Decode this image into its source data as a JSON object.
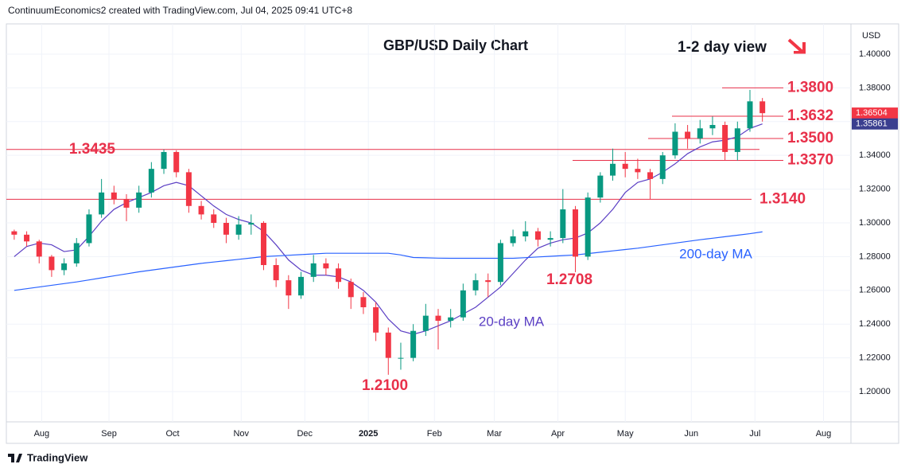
{
  "chart_data": {
    "type": "candlestick",
    "header": "ContinuumEconomics2 created with TradingView.com, Jul 04, 2025 09:41 UTC+8",
    "title": "GBP/USD Daily Chart",
    "subtitle": "1-2 day view",
    "y_axis_label": "USD",
    "footer": "TradingView",
    "up_color": "#089981",
    "down_color": "#f23645",
    "ylim": [
      1.1821,
      1.4179
    ],
    "yticks": [
      {
        "value": 1.2,
        "label": "1.20000"
      },
      {
        "value": 1.22,
        "label": "1.22000"
      },
      {
        "value": 1.24,
        "label": "1.24000"
      },
      {
        "value": 1.26,
        "label": "1.26000"
      },
      {
        "value": 1.28,
        "label": "1.28000"
      },
      {
        "value": 1.3,
        "label": "1.30000"
      },
      {
        "value": 1.32,
        "label": "1.32000"
      },
      {
        "value": 1.34,
        "label": "1.34000"
      },
      {
        "value": 1.36,
        "label": "1.36000"
      },
      {
        "value": 1.38,
        "label": "1.38000"
      },
      {
        "value": 1.4,
        "label": "1.40000"
      }
    ],
    "xlim": [
      -0.63,
      67.1
    ],
    "xticks": [
      {
        "value": 2.2,
        "label": "Aug"
      },
      {
        "value": 7.6,
        "label": "Sep"
      },
      {
        "value": 12.7,
        "label": "Oct"
      },
      {
        "value": 18.2,
        "label": "Nov"
      },
      {
        "value": 23.3,
        "label": "Dec"
      },
      {
        "value": 28.4,
        "label": "2025"
      },
      {
        "value": 33.7,
        "label": "Feb"
      },
      {
        "value": 38.5,
        "label": "Mar"
      },
      {
        "value": 43.6,
        "label": "Apr"
      },
      {
        "value": 49,
        "label": "May"
      },
      {
        "value": 54.3,
        "label": "Jun"
      },
      {
        "value": 59.4,
        "label": "Jul"
      },
      {
        "value": 64.9,
        "label": "Aug"
      }
    ],
    "ohlc": [
      [
        1.295,
        1.296,
        1.29,
        1.293
      ],
      [
        1.293,
        1.295,
        1.286,
        1.289
      ],
      [
        1.289,
        1.29,
        1.276,
        1.28
      ],
      [
        1.28,
        1.281,
        1.268,
        1.272
      ],
      [
        1.272,
        1.279,
        1.269,
        1.276
      ],
      [
        1.276,
        1.291,
        1.274,
        1.288
      ],
      [
        1.288,
        1.308,
        1.286,
        1.305
      ],
      [
        1.305,
        1.326,
        1.303,
        1.318
      ],
      [
        1.318,
        1.322,
        1.311,
        1.314
      ],
      [
        1.314,
        1.317,
        1.301,
        1.309
      ],
      [
        1.309,
        1.322,
        1.306,
        1.318
      ],
      [
        1.318,
        1.336,
        1.315,
        1.332
      ],
      [
        1.332,
        1.3435,
        1.329,
        1.342
      ],
      [
        1.342,
        1.343,
        1.327,
        1.33
      ],
      [
        1.33,
        1.332,
        1.306,
        1.31
      ],
      [
        1.31,
        1.313,
        1.302,
        1.305
      ],
      [
        1.305,
        1.308,
        1.297,
        1.3
      ],
      [
        1.3,
        1.303,
        1.288,
        1.293
      ],
      [
        1.293,
        1.304,
        1.29,
        1.299
      ],
      [
        1.299,
        1.305,
        1.293,
        1.3
      ],
      [
        1.3,
        1.301,
        1.272,
        1.275
      ],
      [
        1.275,
        1.279,
        1.262,
        1.266
      ],
      [
        1.266,
        1.269,
        1.249,
        1.257
      ],
      [
        1.257,
        1.271,
        1.255,
        1.268
      ],
      [
        1.268,
        1.281,
        1.265,
        1.276
      ],
      [
        1.276,
        1.279,
        1.269,
        1.273
      ],
      [
        1.273,
        1.276,
        1.261,
        1.265
      ],
      [
        1.265,
        1.267,
        1.249,
        1.256
      ],
      [
        1.256,
        1.259,
        1.246,
        1.25
      ],
      [
        1.25,
        1.253,
        1.23,
        1.235
      ],
      [
        1.235,
        1.238,
        1.21,
        1.22
      ],
      [
        1.22,
        1.229,
        1.213,
        1.22
      ],
      [
        1.22,
        1.24,
        1.218,
        1.236
      ],
      [
        1.236,
        1.252,
        1.233,
        1.245
      ],
      [
        1.245,
        1.249,
        1.225,
        1.242
      ],
      [
        1.242,
        1.249,
        1.238,
        1.244
      ],
      [
        1.244,
        1.264,
        1.242,
        1.26
      ],
      [
        1.26,
        1.27,
        1.257,
        1.266
      ],
      [
        1.266,
        1.27,
        1.256,
        1.265
      ],
      [
        1.265,
        1.29,
        1.263,
        1.288
      ],
      [
        1.288,
        1.296,
        1.286,
        1.292
      ],
      [
        1.292,
        1.301,
        1.289,
        1.295
      ],
      [
        1.295,
        1.297,
        1.286,
        1.29
      ],
      [
        1.29,
        1.295,
        1.286,
        1.291
      ],
      [
        1.291,
        1.32,
        1.288,
        1.308
      ],
      [
        1.308,
        1.31,
        1.2708,
        1.28
      ],
      [
        1.28,
        1.318,
        1.278,
        1.315
      ],
      [
        1.315,
        1.33,
        1.312,
        1.328
      ],
      [
        1.328,
        1.344,
        1.325,
        1.335
      ],
      [
        1.335,
        1.342,
        1.327,
        1.332
      ],
      [
        1.332,
        1.338,
        1.326,
        1.33
      ],
      [
        1.33,
        1.332,
        1.314,
        1.326
      ],
      [
        1.326,
        1.342,
        1.323,
        1.34
      ],
      [
        1.34,
        1.359,
        1.338,
        1.354
      ],
      [
        1.354,
        1.358,
        1.344,
        1.35
      ],
      [
        1.35,
        1.361,
        1.347,
        1.356
      ],
      [
        1.356,
        1.363,
        1.352,
        1.358
      ],
      [
        1.358,
        1.36,
        1.337,
        1.342
      ],
      [
        1.342,
        1.36,
        1.337,
        1.356
      ],
      [
        1.356,
        1.3788,
        1.354,
        1.372
      ],
      [
        1.372,
        1.374,
        1.36,
        1.365
      ]
    ],
    "series": [
      {
        "name": "20-day MA",
        "color": "#5b3fc4",
        "values": [
          1.28,
          1.286,
          1.288,
          1.287,
          1.283,
          1.284,
          1.292,
          1.301,
          1.308,
          1.312,
          1.315,
          1.318,
          1.322,
          1.324,
          1.322,
          1.316,
          1.31,
          1.305,
          1.302,
          1.3,
          1.295,
          1.287,
          1.278,
          1.272,
          1.269,
          1.269,
          1.268,
          1.265,
          1.26,
          1.253,
          1.243,
          1.236,
          1.234,
          1.236,
          1.239,
          1.242,
          1.246,
          1.25,
          1.256,
          1.262,
          1.27,
          1.278,
          1.285,
          1.288,
          1.29,
          1.291,
          1.294,
          1.3,
          1.308,
          1.318,
          1.324,
          1.326,
          1.33,
          1.335,
          1.341,
          1.345,
          1.348,
          1.349,
          1.351,
          1.356,
          1.3586
        ]
      },
      {
        "name": "200-day MA",
        "color": "#2962ff",
        "values": [
          1.26,
          1.261,
          1.262,
          1.263,
          1.264,
          1.265,
          1.2662,
          1.2674,
          1.2686,
          1.2698,
          1.271,
          1.272,
          1.273,
          1.274,
          1.275,
          1.276,
          1.2768,
          1.2776,
          1.2784,
          1.2792,
          1.28,
          1.2804,
          1.2808,
          1.2812,
          1.2816,
          1.282,
          1.282,
          1.282,
          1.282,
          1.282,
          1.282,
          1.281,
          1.2795,
          1.2793,
          1.2791,
          1.279,
          1.279,
          1.279,
          1.279,
          1.279,
          1.279,
          1.2794,
          1.2798,
          1.2802,
          1.2806,
          1.281,
          1.2818,
          1.2826,
          1.2834,
          1.2842,
          1.285,
          1.286,
          1.287,
          1.288,
          1.289,
          1.29,
          1.2909,
          1.2918,
          1.2927,
          1.2936,
          1.2947
        ]
      }
    ],
    "last_price": 1.36504,
    "last_ma": 1.35861,
    "levels": [
      {
        "value": 1.38,
        "label": "1.3800"
      },
      {
        "value": 1.3632,
        "label": "1.3632"
      },
      {
        "value": 1.35,
        "label": "1.3500"
      },
      {
        "value": 1.3435,
        "label": "1.3435"
      },
      {
        "value": 1.337,
        "label": "1.3370"
      },
      {
        "value": 1.314,
        "label": "1.3140"
      },
      {
        "value": 1.2708,
        "label": "1.2708"
      },
      {
        "value": 1.21,
        "label": "1.2100"
      }
    ],
    "level_color": "#e8304a"
  }
}
